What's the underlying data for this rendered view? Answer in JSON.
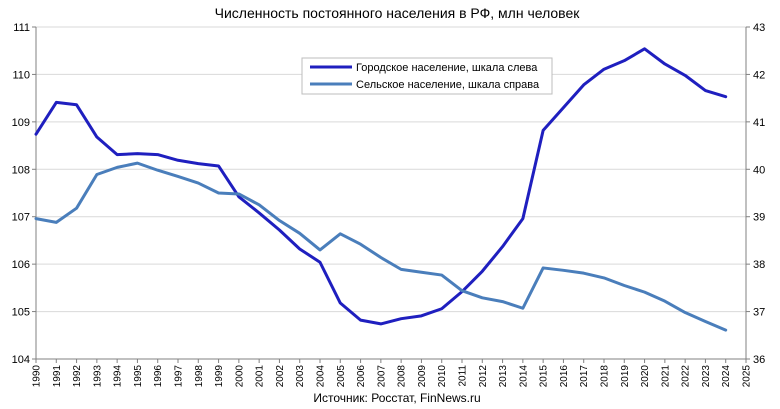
{
  "chart_data": {
    "type": "line",
    "title": "Численность постоянного населения в РФ, млн человек",
    "source": "Источник: Росстат, FinNews.ru",
    "x": [
      1990,
      1991,
      1992,
      1993,
      1994,
      1995,
      1996,
      1997,
      1998,
      1999,
      2000,
      2001,
      2002,
      2003,
      2004,
      2005,
      2006,
      2007,
      2008,
      2009,
      2010,
      2011,
      2012,
      2013,
      2014,
      2015,
      2016,
      2017,
      2018,
      2019,
      2020,
      2021,
      2022,
      2023,
      2024
    ],
    "x_ticks": [
      1990,
      1991,
      1992,
      1993,
      1994,
      1995,
      1996,
      1997,
      1998,
      1999,
      2000,
      2001,
      2002,
      2003,
      2004,
      2005,
      2006,
      2007,
      2008,
      2009,
      2010,
      2011,
      2012,
      2013,
      2014,
      2015,
      2016,
      2017,
      2018,
      2019,
      2020,
      2021,
      2022,
      2023,
      2024,
      2025
    ],
    "xlim": [
      1990,
      2025
    ],
    "ylim_left": [
      104,
      111
    ],
    "ylim_right": [
      36,
      43
    ],
    "y_left_ticks": [
      104,
      105,
      106,
      107,
      108,
      109,
      110,
      111
    ],
    "y_right_ticks": [
      36,
      37,
      38,
      39,
      40,
      41,
      42,
      43
    ],
    "grid": "horizontal",
    "legend_position": "top-center-right",
    "series": [
      {
        "name": "Городское население, шкала слева",
        "axis": "left",
        "color": "#1f1fbf",
        "values": [
          108.74,
          109.41,
          109.36,
          108.68,
          108.31,
          108.33,
          108.31,
          108.19,
          108.12,
          108.07,
          107.42,
          107.08,
          106.72,
          106.32,
          106.04,
          105.18,
          104.82,
          104.74,
          104.85,
          104.91,
          105.06,
          105.42,
          105.85,
          106.37,
          106.96,
          108.82,
          109.3,
          109.78,
          110.11,
          110.29,
          110.54,
          110.22,
          109.98,
          109.66,
          109.53
        ]
      },
      {
        "name": "Сельское население, шкала справа",
        "axis": "right",
        "color": "#4a7ebb",
        "values": [
          38.96,
          38.88,
          39.18,
          39.89,
          40.04,
          40.13,
          39.98,
          39.85,
          39.71,
          39.5,
          39.48,
          39.25,
          38.92,
          38.65,
          38.3,
          38.64,
          38.42,
          38.14,
          37.89,
          37.83,
          37.77,
          37.44,
          37.29,
          37.21,
          37.07,
          37.92,
          37.87,
          37.81,
          37.71,
          37.55,
          37.41,
          37.22,
          36.98,
          36.79,
          36.61
        ]
      }
    ]
  }
}
